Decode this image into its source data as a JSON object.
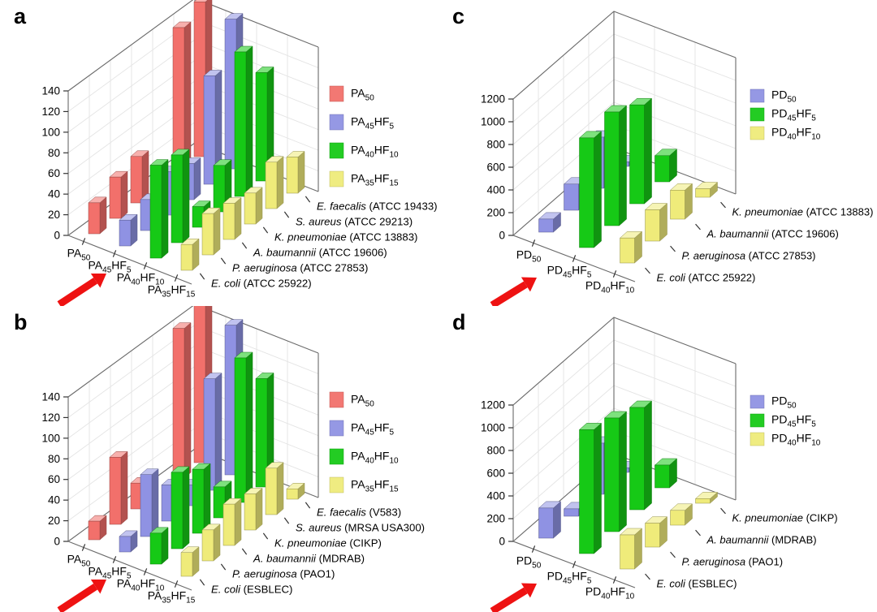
{
  "figure": {
    "background_color": "#ffffff",
    "arrow_color": "#ee1212",
    "description_visible_text_only": true
  },
  "chart_data": [
    {
      "letter": "a",
      "type": "bar",
      "projection": "3d",
      "ylim": [
        0,
        140
      ],
      "ytick_step": 20,
      "grid": true,
      "legend_position": "right",
      "x_categories": [
        "PA_{50}",
        "PA_{45}HF_{5}",
        "PA_{40}HF_{10}",
        "PA_{35}HF_{15}"
      ],
      "rows_back_to_front": [
        {
          "species": "E. faecalis",
          "strain": "(ATCC 19433)"
        },
        {
          "species": "S. aureus",
          "strain": "(ATCC 29213)"
        },
        {
          "species": "K. pneumoniae",
          "strain": "(ATCC 13883)"
        },
        {
          "species": "A. baumannii",
          "strain": "(ATCC 19606)"
        },
        {
          "species": "P. aeruginosa",
          "strain": "(ATCC 27853)"
        },
        {
          "species": "E. coli",
          "strain": "(ATCC 25922)"
        }
      ],
      "series": [
        {
          "label": "PA_{50}",
          "color": "#f2706b",
          "values_back_to_front": [
            150,
            140,
            0,
            45,
            40,
            30
          ]
        },
        {
          "label": "PA_{45}HF_{5}",
          "color": "#8f92e3",
          "values_back_to_front": [
            145,
            105,
            35,
            42,
            30,
            25
          ]
        },
        {
          "label": "PA_{40}HF_{10}",
          "color": "#16c916",
          "values_back_to_front": [
            105,
            140,
            45,
            20,
            85,
            90
          ]
        },
        {
          "label": "PA_{35}HF_{15}",
          "color": "#efeb7a",
          "values_back_to_front": [
            35,
            45,
            30,
            35,
            40,
            25
          ]
        }
      ],
      "arrow_points_to": "PA_{40}HF_{10}"
    },
    {
      "letter": "b",
      "type": "bar",
      "projection": "3d",
      "ylim": [
        0,
        140
      ],
      "ytick_step": 20,
      "grid": true,
      "legend_position": "right",
      "x_categories": [
        "PA_{50}",
        "PA_{45}HF_{5}",
        "PA_{40}HF_{10}",
        "PA_{35}HF_{15}"
      ],
      "rows_back_to_front": [
        {
          "species": "E. faecalis",
          "strain": "(V583)"
        },
        {
          "species": "S. aureus",
          "strain": "(MRSA USA300)"
        },
        {
          "species": "K. pneumoniae",
          "strain": "(CIKP)"
        },
        {
          "species": "A. baumannii",
          "strain": "(MDRAB)"
        },
        {
          "species": "P. aeruginosa",
          "strain": "(PAO1)"
        },
        {
          "species": "E. coli",
          "strain": "(ESBLEC)"
        }
      ],
      "series": [
        {
          "label": "PA_{50}",
          "color": "#f2706b",
          "values_back_to_front": [
            155,
            145,
            0,
            25,
            65,
            18
          ]
        },
        {
          "label": "PA_{45}HF_{5}",
          "color": "#8f92e3",
          "values_back_to_front": [
            145,
            108,
            20,
            35,
            60,
            15
          ]
        },
        {
          "label": "PA_{40}HF_{10}",
          "color": "#16c916",
          "values_back_to_front": [
            105,
            140,
            30,
            62,
            74,
            30
          ]
        },
        {
          "label": "PA_{35}HF_{15}",
          "color": "#efeb7a",
          "values_back_to_front": [
            10,
            45,
            35,
            40,
            30,
            23
          ]
        }
      ],
      "arrow_points_to": "PA_{40}HF_{10}"
    },
    {
      "letter": "c",
      "type": "bar",
      "projection": "3d",
      "ylim": [
        0,
        1200
      ],
      "ytick_step": 200,
      "grid": true,
      "legend_position": "right",
      "x_categories": [
        "PD_{50}",
        "PD_{45}HF_{5}",
        "PD_{40}HF_{10}"
      ],
      "rows_back_to_front": [
        {
          "species": "K. pneumoniae",
          "strain": "(ATCC 13883)"
        },
        {
          "species": "A. baumannii",
          "strain": "(ATCC 19606)"
        },
        {
          "species": "P. aeruginosa",
          "strain": "(ATCC 27853)"
        },
        {
          "species": "E. coli",
          "strain": "(ATCC 25922)"
        }
      ],
      "series": [
        {
          "label": "PD_{50}",
          "color": "#8f92e3",
          "values_back_to_front": [
            40,
            450,
            230,
            115
          ]
        },
        {
          "label": "PD_{45}HF_{5}",
          "color": "#16c916",
          "values_back_to_front": [
            230,
            870,
            1000,
            965
          ]
        },
        {
          "label": "PD_{40}HF_{10}",
          "color": "#efeb7a",
          "values_back_to_front": [
            75,
            255,
            275,
            220
          ]
        }
      ],
      "arrow_points_to": "PD_{45}HF_{5}"
    },
    {
      "letter": "d",
      "type": "bar",
      "projection": "3d",
      "ylim": [
        0,
        1200
      ],
      "ytick_step": 200,
      "grid": true,
      "legend_position": "right",
      "x_categories": [
        "PD_{50}",
        "PD_{45}HF_{5}",
        "PD_{40}HF_{10}"
      ],
      "rows_back_to_front": [
        {
          "species": "K. pneumoniae",
          "strain": "(CIKP)"
        },
        {
          "species": "A. baumannii",
          "strain": "(MDRAB)"
        },
        {
          "species": "P. aeruginosa",
          "strain": "(PAO1)"
        },
        {
          "species": "E. coli",
          "strain": "(ESBLEC)"
        }
      ],
      "series": [
        {
          "label": "PD_{50}",
          "color": "#8f92e3",
          "values_back_to_front": [
            40,
            450,
            65,
            265
          ]
        },
        {
          "label": "PD_{45}HF_{5}",
          "color": "#16c916",
          "values_back_to_front": [
            200,
            900,
            1000,
            1090
          ]
        },
        {
          "label": "PD_{40}HF_{10}",
          "color": "#efeb7a",
          "values_back_to_front": [
            40,
            130,
            210,
            300
          ]
        }
      ],
      "arrow_points_to": "PD_{45}HF_{5}"
    }
  ]
}
